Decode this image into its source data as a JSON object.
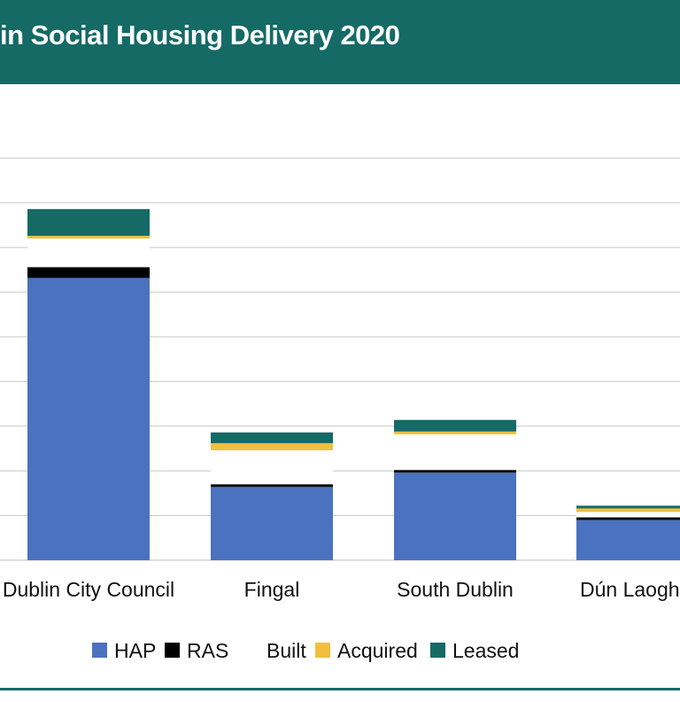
{
  "header": {
    "title": "in Social Housing Delivery 2020"
  },
  "colors": {
    "header_bg": "#156a66",
    "HAP": "#4a72be",
    "RAS": "#000000",
    "Built": "#ffffff",
    "Acquired": "#f2bf3c",
    "Leased": "#156a66",
    "grid": "#c8c8c8"
  },
  "chart_data": {
    "type": "bar",
    "stacked": true,
    "categories": [
      "Dublin City Council",
      "Fingal",
      "South Dublin",
      "Dún Laoghaire-Rathdown"
    ],
    "series": [
      {
        "name": "HAP",
        "values": [
          3160,
          820,
          980,
          450
        ]
      },
      {
        "name": "RAS",
        "values": [
          120,
          30,
          30,
          30
        ]
      },
      {
        "name": "Built",
        "values": [
          320,
          380,
          400,
          60
        ]
      },
      {
        "name": "Acquired",
        "values": [
          30,
          80,
          30,
          40
        ]
      },
      {
        "name": "Leased",
        "values": [
          300,
          120,
          130,
          30
        ]
      }
    ],
    "ylim": [
      0,
      4500
    ],
    "grid": true,
    "legend": "bottom"
  }
}
